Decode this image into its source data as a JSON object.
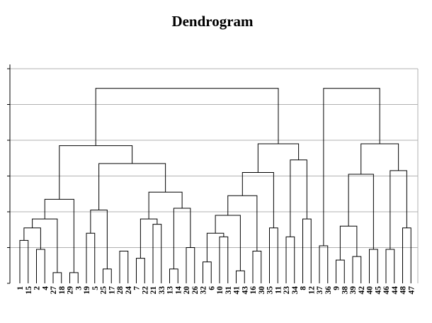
{
  "chart_data": {
    "type": "dendrogram",
    "title": "Dendrogram",
    "xlabel": "",
    "ylabel": "",
    "grid": true,
    "ylim": [
      0,
      6
    ],
    "leaves": [
      "1",
      "15",
      "2",
      "4",
      "27",
      "18",
      "29",
      "3",
      "19",
      "5",
      "25",
      "17",
      "28",
      "24",
      "7",
      "22",
      "21",
      "33",
      "13",
      "14",
      "20",
      "26",
      "32",
      "6",
      "10",
      "31",
      "41",
      "43",
      "16",
      "30",
      "35",
      "11",
      "23",
      "34",
      "8",
      "12",
      "37",
      "36",
      "9",
      "38",
      "39",
      "42",
      "40",
      "45",
      "46",
      "44",
      "48",
      "47"
    ],
    "merges": [
      {
        "children": [
          "1",
          "15"
        ],
        "height": 1.2
      },
      {
        "children": [
          "2",
          "4"
        ],
        "height": 0.95
      },
      {
        "children": [
          0,
          1
        ],
        "height": 1.55
      },
      {
        "children": [
          "27",
          "18"
        ],
        "height": 0.3
      },
      {
        "children": [
          2,
          3
        ],
        "height": 1.8
      },
      {
        "children": [
          "29",
          "3"
        ],
        "height": 0.3
      },
      {
        "children": [
          4,
          5
        ],
        "height": 2.35
      },
      {
        "children": [
          "19",
          "5"
        ],
        "height": 1.4
      },
      {
        "children": [
          "25",
          "17"
        ],
        "height": 0.4
      },
      {
        "children": [
          7,
          8
        ],
        "height": 2.05
      },
      {
        "children": [
          "28",
          "24"
        ],
        "height": 0.9
      },
      {
        "children": [
          "7",
          "22"
        ],
        "height": 0.7
      },
      {
        "children": [
          "21",
          "33"
        ],
        "height": 1.65
      },
      {
        "children": [
          11,
          12
        ],
        "height": 1.8
      },
      {
        "children": [
          "13",
          "14"
        ],
        "height": 0.4
      },
      {
        "children": [
          "20",
          "26"
        ],
        "height": 1.0
      },
      {
        "children": [
          14,
          15
        ],
        "height": 2.1
      },
      {
        "children": [
          13,
          16
        ],
        "height": 2.55
      },
      {
        "children": [
          9,
          17
        ],
        "height": 3.35
      },
      {
        "children": [
          6,
          18
        ],
        "height": 3.85
      },
      {
        "children": [
          "32",
          "6"
        ],
        "height": 0.6
      },
      {
        "children": [
          "10",
          "31"
        ],
        "height": 1.3
      },
      {
        "children": [
          20,
          21
        ],
        "height": 1.4
      },
      {
        "children": [
          "41",
          "43"
        ],
        "height": 0.35
      },
      {
        "children": [
          22,
          23
        ],
        "height": 1.9
      },
      {
        "children": [
          "16",
          "30"
        ],
        "height": 0.9
      },
      {
        "children": [
          24,
          25
        ],
        "height": 2.45
      },
      {
        "children": [
          "35",
          "11"
        ],
        "height": 1.55
      },
      {
        "children": [
          26,
          27
        ],
        "height": 3.1
      },
      {
        "children": [
          "23",
          "34"
        ],
        "height": 1.3
      },
      {
        "children": [
          "8",
          "12"
        ],
        "height": 1.8
      },
      {
        "children": [
          29,
          30
        ],
        "height": 3.45
      },
      {
        "children": [
          28,
          31
        ],
        "height": 3.9
      },
      {
        "children": [
          19,
          32
        ],
        "height": 5.45
      },
      {
        "children": [
          "37",
          "36"
        ],
        "height": 1.05
      },
      {
        "children": [
          "9",
          "38"
        ],
        "height": 0.65
      },
      {
        "children": [
          "39",
          "42"
        ],
        "height": 0.75
      },
      {
        "children": [
          "40",
          "45"
        ],
        "height": 0.95
      },
      {
        "children": [
          35,
          36
        ],
        "height": 1.6
      },
      {
        "children": [
          37,
          38
        ],
        "height": 3.05
      },
      {
        "children": [
          "46",
          "44"
        ],
        "height": 0.95
      },
      {
        "children": [
          "48",
          "47"
        ],
        "height": 1.55
      },
      {
        "children": [
          40,
          41
        ],
        "height": 3.15
      },
      {
        "children": [
          39,
          42
        ],
        "height": 3.9
      },
      {
        "children": [
          34,
          43
        ],
        "height": 5.45
      }
    ]
  }
}
